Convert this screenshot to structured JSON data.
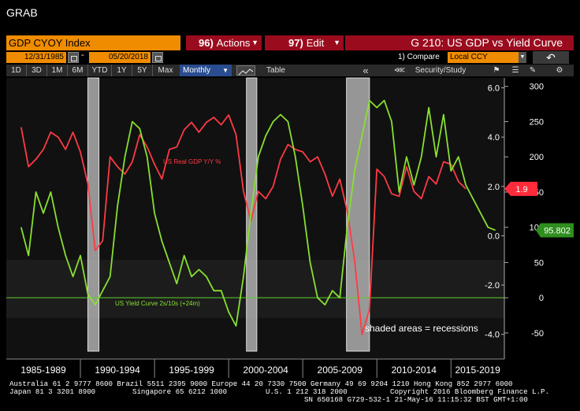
{
  "app": {
    "title": "GRAB"
  },
  "header": {
    "ticker": "GDP CYOY Index",
    "actions": {
      "num": "96)",
      "label": "Actions"
    },
    "edit": {
      "num": "97)",
      "label": "Edit"
    },
    "chart_title": "G 210: US GDP vs Yield Curve"
  },
  "dates": {
    "start": "12/31/1985",
    "separator": "-",
    "end": "05/20/2018"
  },
  "compare": {
    "label": "1) Compare",
    "value": "Local CCY"
  },
  "toolbar": {
    "periods": [
      "1D",
      "3D",
      "1M",
      "6M",
      "YTD",
      "1Y",
      "5Y",
      "Max"
    ],
    "frequency": "Monthly",
    "table_label": "Table",
    "nav_back": "«",
    "security_study": "Security/Study"
  },
  "footer": {
    "line1": "Australia 61 2 9777 8600 Brazil 5511 2395 9000 Europe 44 20 7330 7500 Germany 49 69 9204 1210 Hong Kong 852 2977 6000",
    "line2_left": "Japan 81 3 3201 8900",
    "line2_mid1": "Singapore 65 6212 1000",
    "line2_mid2": "U.S. 1 212 318 2000",
    "line2_right": "Copyright 2016 Bloomberg Finance L.P.",
    "line3": "SN 650168 G729-532-1 21-May-16 11:15:32 BST  GMT+1:00"
  },
  "chart_data": {
    "type": "line",
    "x_ticks": [
      "1985-1989",
      "1990-1994",
      "1995-1999",
      "2000-2004",
      "2005-2009",
      "2010-2014",
      "2015-2019"
    ],
    "left_axis": {
      "ticks": [
        6.0,
        4.0,
        2.0,
        0.0,
        -2.0,
        -4.0
      ],
      "labels": [
        "6.0",
        "4.0",
        "2.0",
        "0.0",
        "-2.0",
        "-4.0"
      ],
      "range": [
        -5.0,
        6.4
      ]
    },
    "right_axis": {
      "ticks": [
        300,
        250,
        200,
        150,
        100,
        50,
        0,
        -50
      ],
      "labels": [
        "300",
        "250",
        "200",
        "150",
        "100",
        "50",
        "0",
        "-50"
      ],
      "range": [
        -87,
        312
      ]
    },
    "recessions": [
      [
        1990.5,
        1991.25
      ],
      [
        2001.2,
        2001.9
      ],
      [
        2007.95,
        2009.5
      ]
    ],
    "recession_label": "shaded areas = recessions",
    "series": [
      {
        "name": "US Real GDP Y/Y %",
        "color": "#ff3a44",
        "axis": "left",
        "last_value": "1.9",
        "x": [
          1986.0,
          1986.5,
          1987.0,
          1987.5,
          1988.0,
          1988.5,
          1989.0,
          1989.5,
          1990.0,
          1990.5,
          1991.0,
          1991.5,
          1992.0,
          1992.5,
          1993.0,
          1993.5,
          1994.0,
          1994.5,
          1995.0,
          1995.5,
          1996.0,
          1996.5,
          1997.0,
          1997.5,
          1998.0,
          1998.5,
          1999.0,
          1999.5,
          2000.0,
          2000.5,
          2001.0,
          2001.5,
          2002.0,
          2002.5,
          2003.0,
          2003.5,
          2004.0,
          2004.5,
          2005.0,
          2005.5,
          2006.0,
          2006.5,
          2007.0,
          2007.5,
          2008.0,
          2008.5,
          2009.0,
          2009.5,
          2010.0,
          2010.5,
          2011.0,
          2011.5,
          2012.0,
          2012.5,
          2013.0,
          2013.5,
          2014.0,
          2014.5,
          2015.0,
          2015.5,
          2016.0
        ],
        "y": [
          4.4,
          2.8,
          3.1,
          3.5,
          4.2,
          4.0,
          3.5,
          4.2,
          3.4,
          2.1,
          -0.6,
          -0.2,
          3.2,
          2.8,
          2.5,
          3.0,
          4.1,
          3.6,
          2.9,
          2.3,
          3.5,
          3.6,
          4.3,
          4.6,
          4.2,
          4.6,
          4.8,
          4.5,
          4.9,
          4.1,
          1.8,
          0.6,
          1.8,
          1.5,
          2.0,
          3.1,
          3.7,
          3.5,
          3.4,
          3.0,
          3.2,
          2.5,
          1.6,
          2.3,
          1.0,
          -1.0,
          -4.0,
          -3.0,
          2.7,
          2.4,
          1.7,
          1.6,
          2.8,
          1.8,
          1.5,
          2.4,
          2.1,
          3.0,
          2.9,
          2.2,
          1.9
        ]
      },
      {
        "name": "US Yield Curve 2s/10s (+24m)",
        "color": "#88e030",
        "axis": "right",
        "last_value": "95.802",
        "x": [
          1986.0,
          1986.5,
          1987.0,
          1987.5,
          1988.0,
          1988.5,
          1989.0,
          1989.5,
          1990.0,
          1990.5,
          1991.0,
          1991.5,
          1992.0,
          1992.5,
          1993.0,
          1993.5,
          1994.0,
          1994.5,
          1995.0,
          1995.5,
          1996.0,
          1996.5,
          1997.0,
          1997.5,
          1998.0,
          1998.5,
          1999.0,
          1999.5,
          2000.0,
          2000.5,
          2001.0,
          2001.5,
          2002.0,
          2002.5,
          2003.0,
          2003.5,
          2004.0,
          2004.5,
          2005.0,
          2005.5,
          2006.0,
          2006.5,
          2007.0,
          2007.5,
          2008.0,
          2008.5,
          2009.0,
          2009.5,
          2010.0,
          2010.5,
          2011.0,
          2011.5,
          2012.0,
          2012.5,
          2013.0,
          2013.5,
          2014.0,
          2014.5,
          2015.0,
          2015.5,
          2016.0,
          2016.5,
          2017.0,
          2017.5,
          2018.0
        ],
        "y": [
          100,
          60,
          150,
          120,
          150,
          100,
          60,
          30,
          60,
          5,
          -10,
          10,
          30,
          130,
          200,
          250,
          240,
          200,
          120,
          80,
          50,
          20,
          60,
          30,
          40,
          30,
          10,
          10,
          -20,
          -40,
          30,
          120,
          200,
          230,
          250,
          260,
          250,
          200,
          130,
          50,
          0,
          -10,
          10,
          0,
          100,
          180,
          230,
          280,
          270,
          280,
          250,
          150,
          200,
          160,
          200,
          270,
          200,
          260,
          180,
          200,
          160,
          140,
          120,
          100,
          95.802
        ]
      }
    ]
  }
}
